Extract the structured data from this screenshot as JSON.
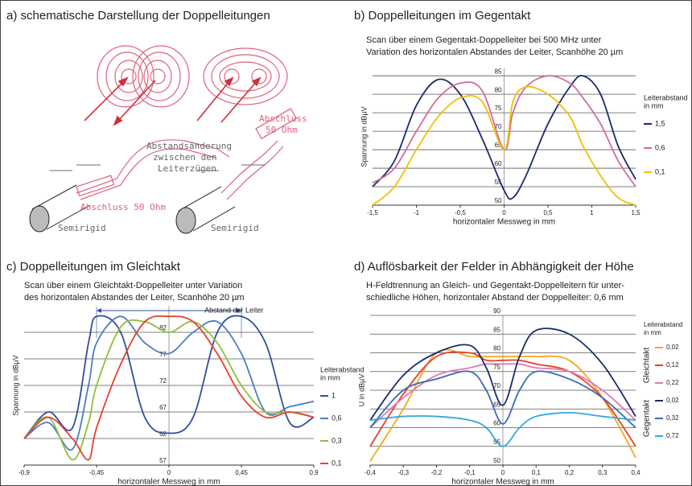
{
  "panel_a": {
    "title": "a) schematische Darstellung der Doppelleitungen",
    "labels": [
      "Abstandsänderung",
      "zwischen den",
      "Leiterzügen",
      "Abschluss",
      "50 Ohm",
      "Abschluss 50 Ohm",
      "Semirigid",
      "Semirigid"
    ]
  },
  "chart_data": [
    {
      "type": "line",
      "title": "b) Doppelleitungen im Gegentakt",
      "subtitle": [
        "Scan über einem Gegentakt-Doppelleiter bei 500 MHz unter",
        "Variation des horizontalen Abstandes der Leiter, Scanhöhe 20 µm"
      ],
      "x_label": "horizontaler Messweg in mm",
      "y_label": "Spannung in dBµV",
      "legend_title": [
        "Leiterabstand",
        "in mm"
      ],
      "grid": true,
      "x": [
        -1.5,
        -1.25,
        -1,
        -0.75,
        -0.5,
        -0.25,
        0,
        0.1,
        0.25,
        0.5,
        0.75,
        0.9,
        1.1,
        1.3,
        1.5
      ],
      "series": [
        {
          "name": "1,5",
          "color": "#1a2a6c",
          "values": [
            55,
            62,
            77,
            84,
            80,
            68,
            54,
            52,
            58,
            72,
            82,
            85,
            80,
            66,
            57
          ]
        },
        {
          "name": "0,6",
          "color": "#d46aa0",
          "values": [
            56,
            60,
            70,
            79,
            83,
            81,
            65,
            75,
            82,
            85,
            83,
            79,
            72,
            62,
            55
          ]
        },
        {
          "name": "0,1",
          "color": "#f0c000",
          "values": [
            50,
            55,
            65,
            74,
            79,
            78,
            65,
            78,
            82,
            80,
            74,
            66,
            58,
            52,
            50
          ]
        }
      ],
      "xlim": [
        -1.5,
        1.5
      ],
      "ylim": [
        50,
        87
      ],
      "xticks": [
        {
          "value": -1.5,
          "label": "-1,5"
        },
        -1,
        {
          "value": -0.5,
          "label": "-0,5"
        },
        0,
        {
          "value": 0.5,
          "label": "0,5"
        },
        1,
        {
          "value": 1.5,
          "label": "1,5"
        }
      ],
      "yticks": [
        50,
        55,
        60,
        65,
        70,
        75,
        80,
        85
      ]
    },
    {
      "type": "line",
      "title": "c) Doppelleitungen im Gleichtakt",
      "subtitle": [
        "Scan über einem Gleichtakt-Doppelleiter unter Variation",
        "des horizontalen Abstandes der Leiter, Scanhöhe 20 µm"
      ],
      "x_label": "horizontaler Messweg in mm",
      "y_label": "Spannung in dBµV",
      "legend_title": [
        "Leiterabstand",
        "in mm"
      ],
      "grid": true,
      "annotation": {
        "text": "Abstand der Leiter",
        "span": [
          -0.45,
          0.45
        ]
      },
      "x": [
        -0.9,
        -0.75,
        -0.6,
        -0.5,
        -0.45,
        -0.3,
        -0.15,
        0,
        0.15,
        0.3,
        0.45,
        0.6,
        0.75,
        0.9
      ],
      "series": [
        {
          "name": "1",
          "color": "#2e4f9e",
          "values": [
            62,
            67,
            64,
            80,
            85,
            82,
            66,
            63,
            66,
            82,
            85,
            80,
            65,
            66
          ]
        },
        {
          "name": "0,6",
          "color": "#4a7cc4",
          "values": [
            62,
            65,
            60,
            72,
            80,
            85,
            80,
            78,
            82,
            84,
            78,
            67,
            68,
            69
          ]
        },
        {
          "name": "0,3",
          "color": "#8cbf3a",
          "values": [
            62,
            66,
            58,
            65,
            72,
            83,
            84,
            82,
            84,
            80,
            72,
            67,
            67,
            66
          ]
        },
        {
          "name": "0,1",
          "color": "#e8402a",
          "values": [
            62,
            66,
            62,
            58,
            64,
            76,
            84,
            85,
            84,
            78,
            70,
            66,
            67,
            66
          ]
        }
      ],
      "xlim": [
        -0.9,
        0.9
      ],
      "ylim": [
        57,
        87
      ],
      "xticks": [
        {
          "value": -0.9,
          "label": "-0,9"
        },
        {
          "value": -0.45,
          "label": "-0,45"
        },
        0,
        {
          "value": 0.45,
          "label": "0,45"
        },
        {
          "value": 0.9,
          "label": "0,9"
        }
      ],
      "yticks": [
        57,
        62,
        67,
        72,
        77,
        82
      ]
    },
    {
      "type": "line",
      "title": "d) Auflösbarkeit der Felder in Abhängigkeit der Höhe",
      "subtitle": [
        "H-Feldtrennung an Gleich- und Gegentakt-Doppelleitern für unter-",
        "schiedliche Höhen, horizontaler Abstand der Doppelleiter: 0,6 mm"
      ],
      "x_label": "horizontaler Messweg in mm",
      "y_label": "U in dBµV",
      "legend_title": [
        "Leiterabstand",
        "in mm"
      ],
      "grid": true,
      "x": [
        -0.4,
        -0.3,
        -0.2,
        -0.1,
        -0.05,
        0,
        0.05,
        0.1,
        0.2,
        0.3,
        0.4
      ],
      "series_groups": [
        {
          "name": "Gleichtakt",
          "series": [
            {
              "name": "0,02",
              "color": "#f5a623",
              "values": [
                51,
                65,
                80,
                79,
                79,
                79,
                79,
                79,
                78,
                68,
                52
              ]
            },
            {
              "name": "0,12",
              "color": "#e8402a",
              "values": [
                55,
                69,
                79,
                80,
                78,
                78,
                78,
                77,
                75,
                68,
                55
              ]
            },
            {
              "name": "0,22",
              "color": "#e07ab0",
              "values": [
                60,
                68,
                74,
                76,
                77,
                77,
                77,
                76,
                75,
                70,
                62
              ]
            }
          ]
        },
        {
          "name": "Gegentakt",
          "series": [
            {
              "name": "0,02",
              "color": "#1a2a6c",
              "values": [
                62,
                74,
                80,
                82,
                76,
                66,
                79,
                86,
                85,
                77,
                63
              ]
            },
            {
              "name": "0,32",
              "color": "#3a6ab5",
              "values": [
                60,
                70,
                73,
                75,
                70,
                61,
                70,
                75,
                73,
                68,
                60
              ]
            },
            {
              "name": "0,72",
              "color": "#2fa8e0",
              "values": [
                62,
                63,
                63,
                62,
                60,
                55,
                60,
                63,
                64,
                63,
                62
              ]
            }
          ]
        }
      ],
      "xlim": [
        -0.4,
        0.4
      ],
      "ylim": [
        50,
        90
      ],
      "xticks": [
        {
          "value": -0.4,
          "label": "-0,4"
        },
        {
          "value": -0.3,
          "label": "-0,3"
        },
        {
          "value": -0.2,
          "label": "-0,2"
        },
        {
          "value": -0.1,
          "label": "-0,1"
        },
        0,
        {
          "value": 0.1,
          "label": "0,1"
        },
        {
          "value": 0.2,
          "label": "0,2"
        },
        {
          "value": 0.3,
          "label": "0,3"
        },
        {
          "value": 0.4,
          "label": "0,4"
        }
      ],
      "yticks": [
        50,
        55,
        60,
        65,
        70,
        75,
        80,
        85,
        90
      ]
    }
  ]
}
